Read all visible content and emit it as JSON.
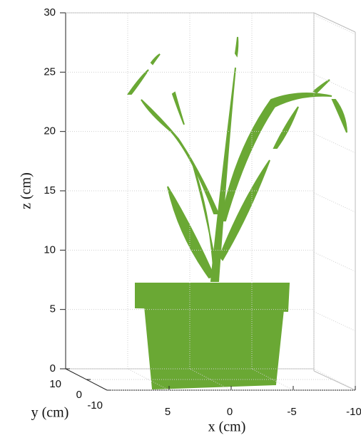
{
  "chart_data": {
    "type": "point-cloud",
    "xlabel": "x (cm)",
    "ylabel": "y (cm)",
    "zlabel": "z (cm)",
    "xlim": [
      10,
      -10
    ],
    "xticks": [
      5,
      0,
      -5,
      -10
    ],
    "ylim": [
      10,
      -10
    ],
    "yticks": [
      10,
      0,
      -10
    ],
    "zlim": [
      0,
      30
    ],
    "zticks": [
      0,
      5,
      10,
      15,
      20,
      25,
      30
    ],
    "grid": true,
    "color": "#6aa834"
  }
}
